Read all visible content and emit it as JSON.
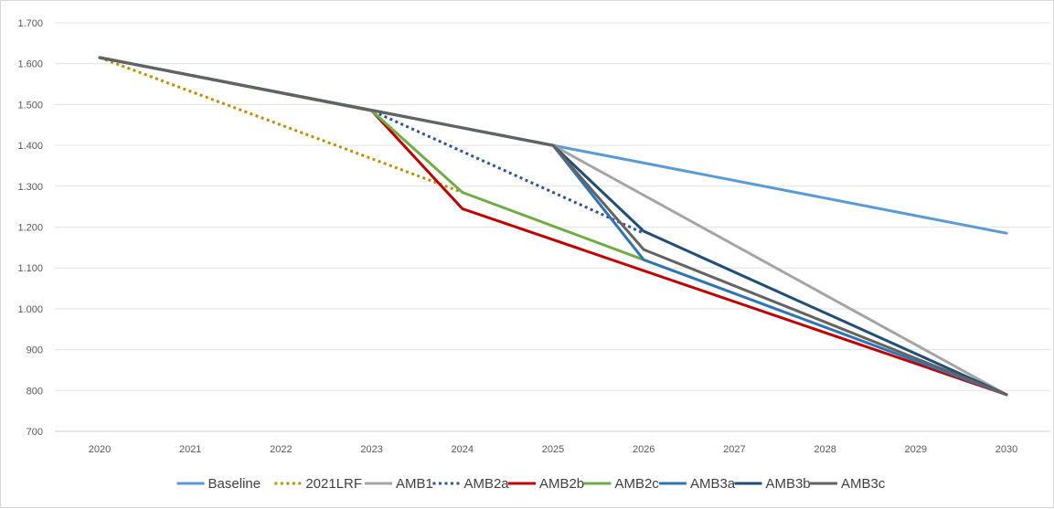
{
  "chart_data": {
    "type": "line",
    "title": "",
    "xlabel": "",
    "ylabel": "",
    "x": [
      "2020",
      "2021",
      "2022",
      "2023",
      "2024",
      "2025",
      "2026",
      "2027",
      "2028",
      "2029",
      "2030"
    ],
    "y_ticks": [
      "700",
      "800",
      "900",
      "1.000",
      "1.100",
      "1.200",
      "1.300",
      "1.400",
      "1.500",
      "1.600",
      "1.700"
    ],
    "ylim": [
      700,
      1700
    ],
    "grid": "horizontal",
    "legend_position": "bottom",
    "series": [
      {
        "name": "Baseline",
        "color": "#5b9bd5",
        "dash": "solid",
        "points": [
          [
            2020,
            1615
          ],
          [
            2025,
            1400
          ],
          [
            2030,
            1185
          ]
        ]
      },
      {
        "name": "2021LRF",
        "color": "#bf9000",
        "dash": "dotted",
        "points": [
          [
            2020,
            1615
          ],
          [
            2024,
            1285
          ]
        ]
      },
      {
        "name": "AMB1",
        "color": "#a5a5a5",
        "dash": "solid",
        "points": [
          [
            2020,
            1615
          ],
          [
            2025,
            1400
          ],
          [
            2030,
            790
          ]
        ]
      },
      {
        "name": "AMB2a",
        "color": "#2f5597",
        "dash": "dotted",
        "points": [
          [
            2020,
            1615
          ],
          [
            2023,
            1485
          ],
          [
            2026,
            1185
          ]
        ]
      },
      {
        "name": "AMB2b",
        "color": "#c00000",
        "dash": "solid",
        "points": [
          [
            2020,
            1615
          ],
          [
            2023,
            1485
          ],
          [
            2024,
            1245
          ],
          [
            2030,
            790
          ]
        ]
      },
      {
        "name": "AMB2c",
        "color": "#70ad47",
        "dash": "solid",
        "points": [
          [
            2020,
            1615
          ],
          [
            2023,
            1485
          ],
          [
            2024,
            1285
          ],
          [
            2026,
            1120
          ]
        ]
      },
      {
        "name": "AMB3a",
        "color": "#2e75b6",
        "dash": "solid",
        "points": [
          [
            2020,
            1615
          ],
          [
            2025,
            1400
          ],
          [
            2026,
            1120
          ],
          [
            2030,
            790
          ]
        ]
      },
      {
        "name": "AMB3b",
        "color": "#1f4e79",
        "dash": "solid",
        "points": [
          [
            2020,
            1615
          ],
          [
            2025,
            1400
          ],
          [
            2026,
            1190
          ],
          [
            2030,
            790
          ]
        ]
      },
      {
        "name": "AMB3c",
        "color": "#636363",
        "dash": "solid",
        "points": [
          [
            2020,
            1615
          ],
          [
            2025,
            1400
          ],
          [
            2026,
            1145
          ],
          [
            2030,
            790
          ]
        ]
      }
    ]
  }
}
